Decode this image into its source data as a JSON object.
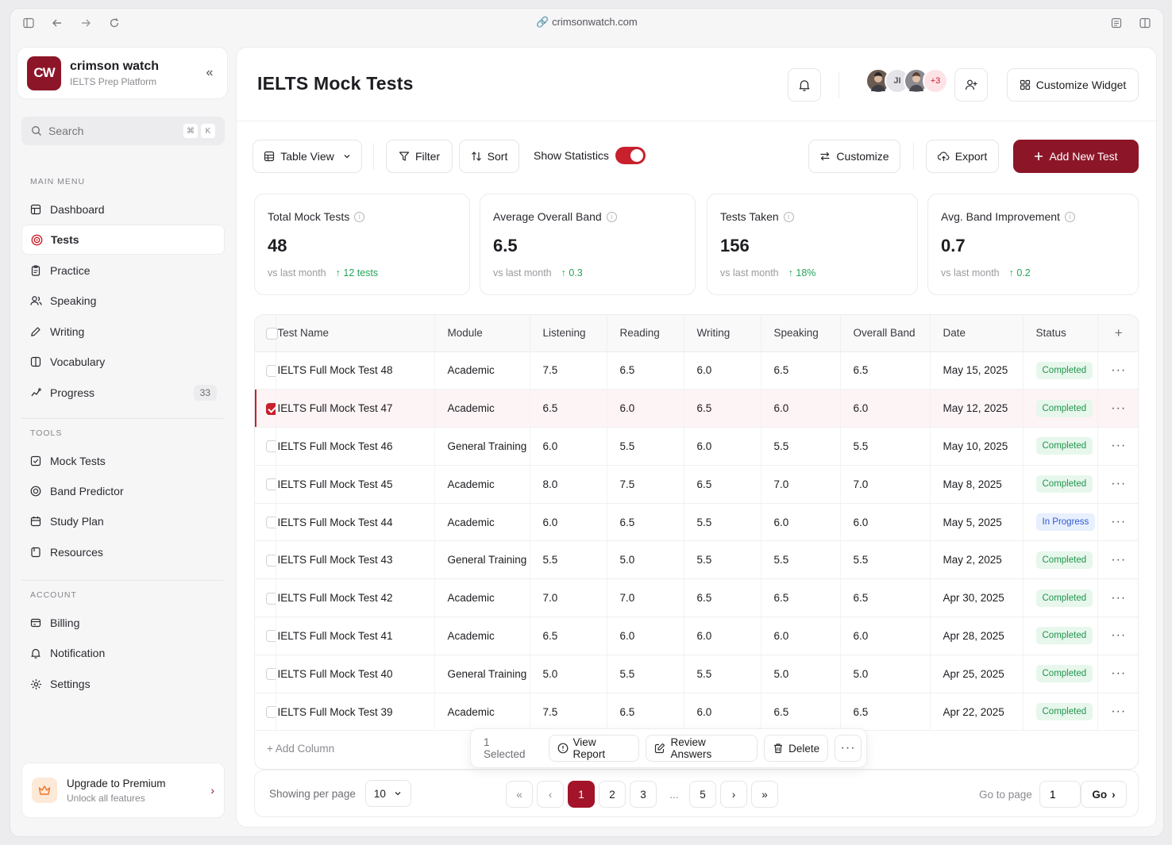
{
  "browser": {
    "url": "crimsonwatch.com"
  },
  "brand": {
    "logo_text": "CW",
    "name": "crimson watch",
    "subtitle": "IELTS Prep Platform"
  },
  "search": {
    "placeholder": "Search",
    "shortcut": [
      "⌘",
      "K"
    ]
  },
  "sidebar": {
    "main_menu_label": "MAIN MENU",
    "main_menu": [
      {
        "label": "Dashboard",
        "icon": "dashboard-icon"
      },
      {
        "label": "Tests",
        "icon": "target-icon",
        "active": true
      },
      {
        "label": "Practice",
        "icon": "clipboard-icon"
      },
      {
        "label": "Speaking",
        "icon": "users-icon"
      },
      {
        "label": "Writing",
        "icon": "pen-icon"
      },
      {
        "label": "Vocabulary",
        "icon": "book-icon"
      },
      {
        "label": "Progress",
        "icon": "chart-icon",
        "count": "33"
      }
    ],
    "tools_label": "TOOLS",
    "tools": [
      {
        "label": "Mock Tests",
        "icon": "check-square-icon"
      },
      {
        "label": "Band Predictor",
        "icon": "target-icon"
      },
      {
        "label": "Study Plan",
        "icon": "calendar-icon"
      },
      {
        "label": "Resources",
        "icon": "file-icon"
      }
    ],
    "account_label": "ACCOUNT",
    "account": [
      {
        "label": "Billing",
        "icon": "card-icon"
      },
      {
        "label": "Notification",
        "icon": "bell-icon"
      },
      {
        "label": "Settings",
        "icon": "gear-icon"
      }
    ],
    "upgrade": {
      "title": "Upgrade to Premium",
      "subtitle": "Unlock all features"
    }
  },
  "header": {
    "title": "IELTS Mock Tests",
    "avatar_more": "+3",
    "customize_widget": "Customize Widget"
  },
  "toolbar": {
    "view": "Table View",
    "filter": "Filter",
    "sort": "Sort",
    "show_statistics": "Show Statistics",
    "show_statistics_on": true,
    "customize": "Customize",
    "export": "Export",
    "add_new": "Add New Test"
  },
  "stats": [
    {
      "label": "Total Mock Tests",
      "value": "48",
      "compare": "vs last month",
      "delta": "12 tests"
    },
    {
      "label": "Average Overall Band",
      "value": "6.5",
      "compare": "vs last month",
      "delta": "0.3"
    },
    {
      "label": "Tests Taken",
      "value": "156",
      "compare": "vs last month",
      "delta": "18%"
    },
    {
      "label": "Avg. Band Improvement",
      "value": "0.7",
      "compare": "vs last month",
      "delta": "0.2"
    }
  ],
  "table": {
    "columns": [
      "Test Name",
      "Module",
      "Listening",
      "Reading",
      "Writing",
      "Speaking",
      "Overall Band",
      "Date",
      "Status"
    ],
    "rows": [
      {
        "name": "IELTS Full Mock Test 48",
        "module": "Academic",
        "listening": "7.5",
        "reading": "6.5",
        "writing": "6.0",
        "speaking": "6.5",
        "overall": "6.5",
        "date": "May 15, 2025",
        "status": "Completed"
      },
      {
        "name": "IELTS Full Mock Test 47",
        "module": "Academic",
        "listening": "6.5",
        "reading": "6.0",
        "writing": "6.5",
        "speaking": "6.0",
        "overall": "6.0",
        "date": "May 12, 2025",
        "status": "Completed",
        "selected": true
      },
      {
        "name": "IELTS Full Mock Test 46",
        "module": "General Training",
        "listening": "6.0",
        "reading": "5.5",
        "writing": "6.0",
        "speaking": "5.5",
        "overall": "5.5",
        "date": "May 10, 2025",
        "status": "Completed"
      },
      {
        "name": "IELTS Full Mock Test 45",
        "module": "Academic",
        "listening": "8.0",
        "reading": "7.5",
        "writing": "6.5",
        "speaking": "7.0",
        "overall": "7.0",
        "date": "May 8, 2025",
        "status": "Completed"
      },
      {
        "name": "IELTS Full Mock Test 44",
        "module": "Academic",
        "listening": "6.0",
        "reading": "6.5",
        "writing": "5.5",
        "speaking": "6.0",
        "overall": "6.0",
        "date": "May 5, 2025",
        "status": "In Progress"
      },
      {
        "name": "IELTS Full Mock Test 43",
        "module": "General Training",
        "listening": "5.5",
        "reading": "5.0",
        "writing": "5.5",
        "speaking": "5.5",
        "overall": "5.5",
        "date": "May 2, 2025",
        "status": "Completed"
      },
      {
        "name": "IELTS Full Mock Test 42",
        "module": "Academic",
        "listening": "7.0",
        "reading": "7.0",
        "writing": "6.5",
        "speaking": "6.5",
        "overall": "6.5",
        "date": "Apr 30, 2025",
        "status": "Completed"
      },
      {
        "name": "IELTS Full Mock Test 41",
        "module": "Academic",
        "listening": "6.5",
        "reading": "6.0",
        "writing": "6.0",
        "speaking": "6.0",
        "overall": "6.0",
        "date": "Apr 28, 2025",
        "status": "Completed"
      },
      {
        "name": "IELTS Full Mock Test 40",
        "module": "General Training",
        "listening": "5.0",
        "reading": "5.5",
        "writing": "5.5",
        "speaking": "5.0",
        "overall": "5.0",
        "date": "Apr 25, 2025",
        "status": "Completed"
      },
      {
        "name": "IELTS Full Mock Test 39",
        "module": "Academic",
        "listening": "7.5",
        "reading": "6.5",
        "writing": "6.0",
        "speaking": "6.5",
        "overall": "6.5",
        "date": "Apr 22, 2025",
        "status": "Completed"
      }
    ],
    "add_column": "Add Column"
  },
  "bulk": {
    "selected": "1 Selected",
    "view_report": "View Report",
    "review_answers": "Review Answers",
    "delete": "Delete"
  },
  "pagination": {
    "per_page_label": "Showing per page",
    "per_page": "10",
    "pages": [
      "1",
      "2",
      "3",
      "...",
      "5"
    ],
    "current": "1",
    "goto_label": "Go to page",
    "goto_value": "1",
    "go": "Go"
  },
  "colors": {
    "accent": "#8c1628",
    "toggle": "#c8202d",
    "success": "#22944d",
    "info": "#2f5bd3"
  }
}
